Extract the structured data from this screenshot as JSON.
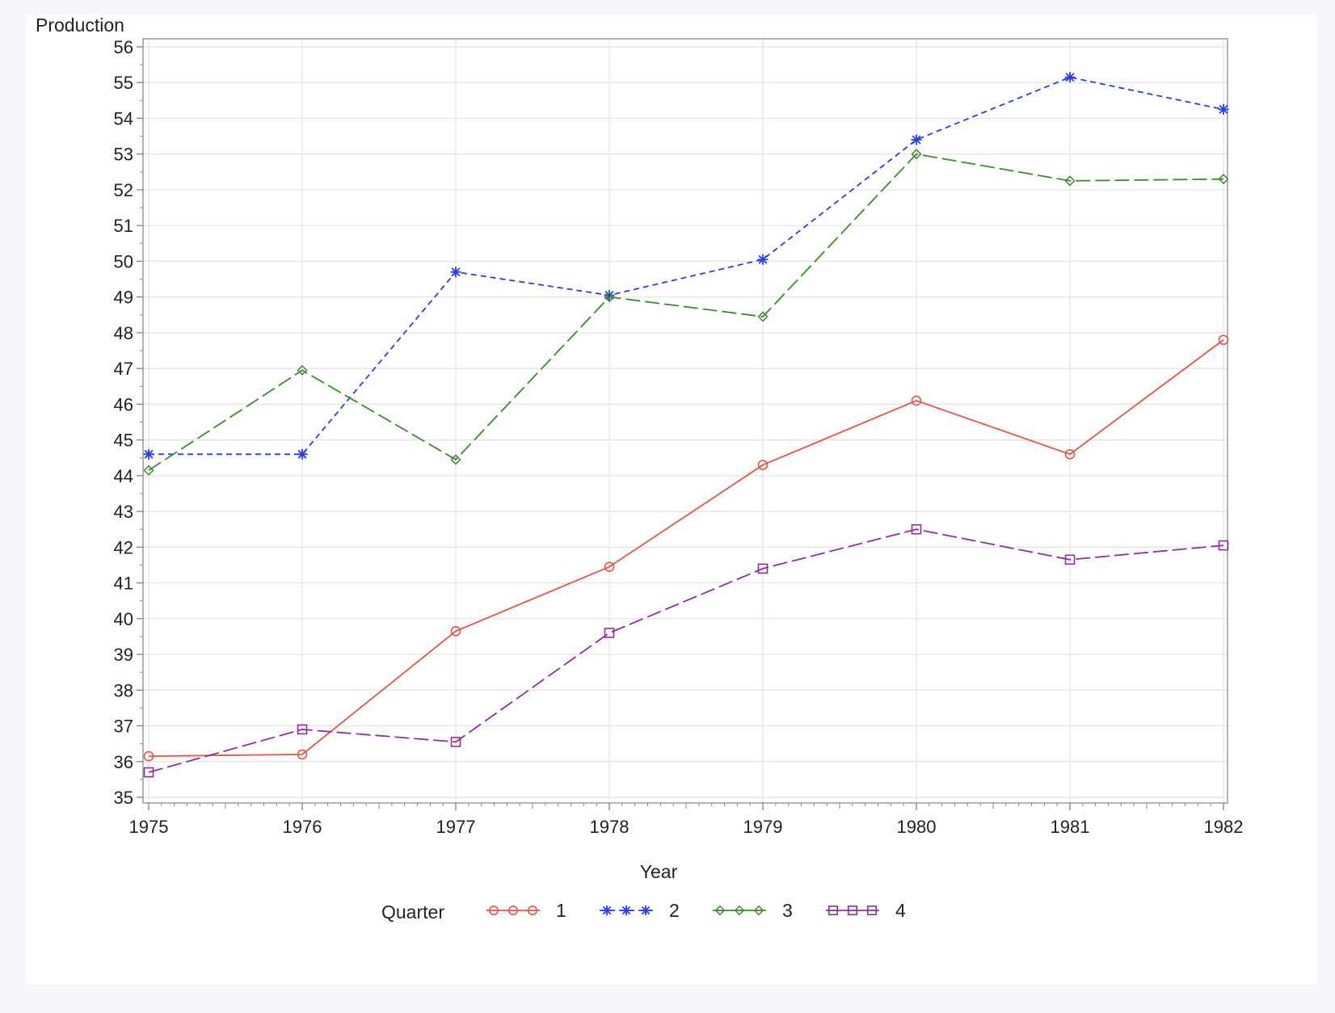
{
  "chart_data": {
    "type": "line",
    "xlabel": "Year",
    "ylabel": "Production",
    "x": [
      1975,
      1976,
      1977,
      1978,
      1979,
      1980,
      1981,
      1982
    ],
    "xlim": [
      1975,
      1982
    ],
    "ylim": [
      35,
      56
    ],
    "xticks": [
      "1975",
      "1976",
      "1977",
      "1978",
      "1979",
      "1980",
      "1981",
      "1982"
    ],
    "yticks": [
      "35",
      "36",
      "37",
      "38",
      "39",
      "40",
      "41",
      "42",
      "43",
      "44",
      "45",
      "46",
      "47",
      "48",
      "49",
      "50",
      "51",
      "52",
      "53",
      "54",
      "55",
      "56"
    ],
    "grid": true,
    "legend_title": "Quarter",
    "legend_position": "bottom",
    "series": [
      {
        "name": "1",
        "color": "#e8534a",
        "marker": "circle",
        "dash": "solid",
        "values": [
          36.15,
          36.2,
          39.65,
          41.45,
          44.3,
          46.1,
          44.6,
          47.8
        ]
      },
      {
        "name": "2",
        "color": "#2a3cf0",
        "marker": "star",
        "dash": "short-dash",
        "values": [
          44.6,
          44.6,
          49.7,
          49.05,
          50.05,
          53.4,
          55.15,
          54.25
        ]
      },
      {
        "name": "3",
        "color": "#3d8a2e",
        "marker": "diamond",
        "dash": "long-dash",
        "values": [
          44.15,
          46.95,
          44.45,
          49.0,
          48.45,
          53.0,
          52.25,
          52.3
        ]
      },
      {
        "name": "4",
        "color": "#8e2f9c",
        "marker": "square",
        "dash": "long-dash",
        "values": [
          35.7,
          36.9,
          36.55,
          39.6,
          41.4,
          42.5,
          41.65,
          42.05
        ]
      }
    ]
  }
}
